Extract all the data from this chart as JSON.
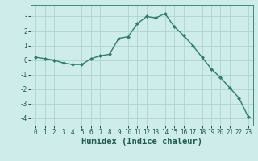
{
  "x": [
    0,
    1,
    2,
    3,
    4,
    5,
    6,
    7,
    8,
    9,
    10,
    11,
    12,
    13,
    14,
    15,
    16,
    17,
    18,
    19,
    20,
    21,
    22,
    23
  ],
  "y": [
    0.2,
    0.1,
    -0.0,
    -0.2,
    -0.3,
    -0.3,
    0.1,
    0.3,
    0.4,
    1.5,
    1.6,
    2.5,
    3.0,
    2.9,
    3.2,
    2.3,
    1.7,
    1.0,
    0.2,
    -0.6,
    -1.2,
    -1.9,
    -2.6,
    -3.9
  ],
  "line_color": "#2e7d6e",
  "marker": "D",
  "marker_size": 2.0,
  "bg_color": "#cdecea",
  "grid_color": "#aed4d0",
  "xlabel": "Humidex (Indice chaleur)",
  "xlim": [
    -0.5,
    23.5
  ],
  "ylim": [
    -4.5,
    3.8
  ],
  "yticks": [
    -4,
    -3,
    -2,
    -1,
    0,
    1,
    2,
    3
  ],
  "xticks": [
    0,
    1,
    2,
    3,
    4,
    5,
    6,
    7,
    8,
    9,
    10,
    11,
    12,
    13,
    14,
    15,
    16,
    17,
    18,
    19,
    20,
    21,
    22,
    23
  ],
  "tick_labelsize": 5.5,
  "xlabel_fontsize": 7.5,
  "linewidth": 1.0,
  "spine_color": "#3a8a80"
}
